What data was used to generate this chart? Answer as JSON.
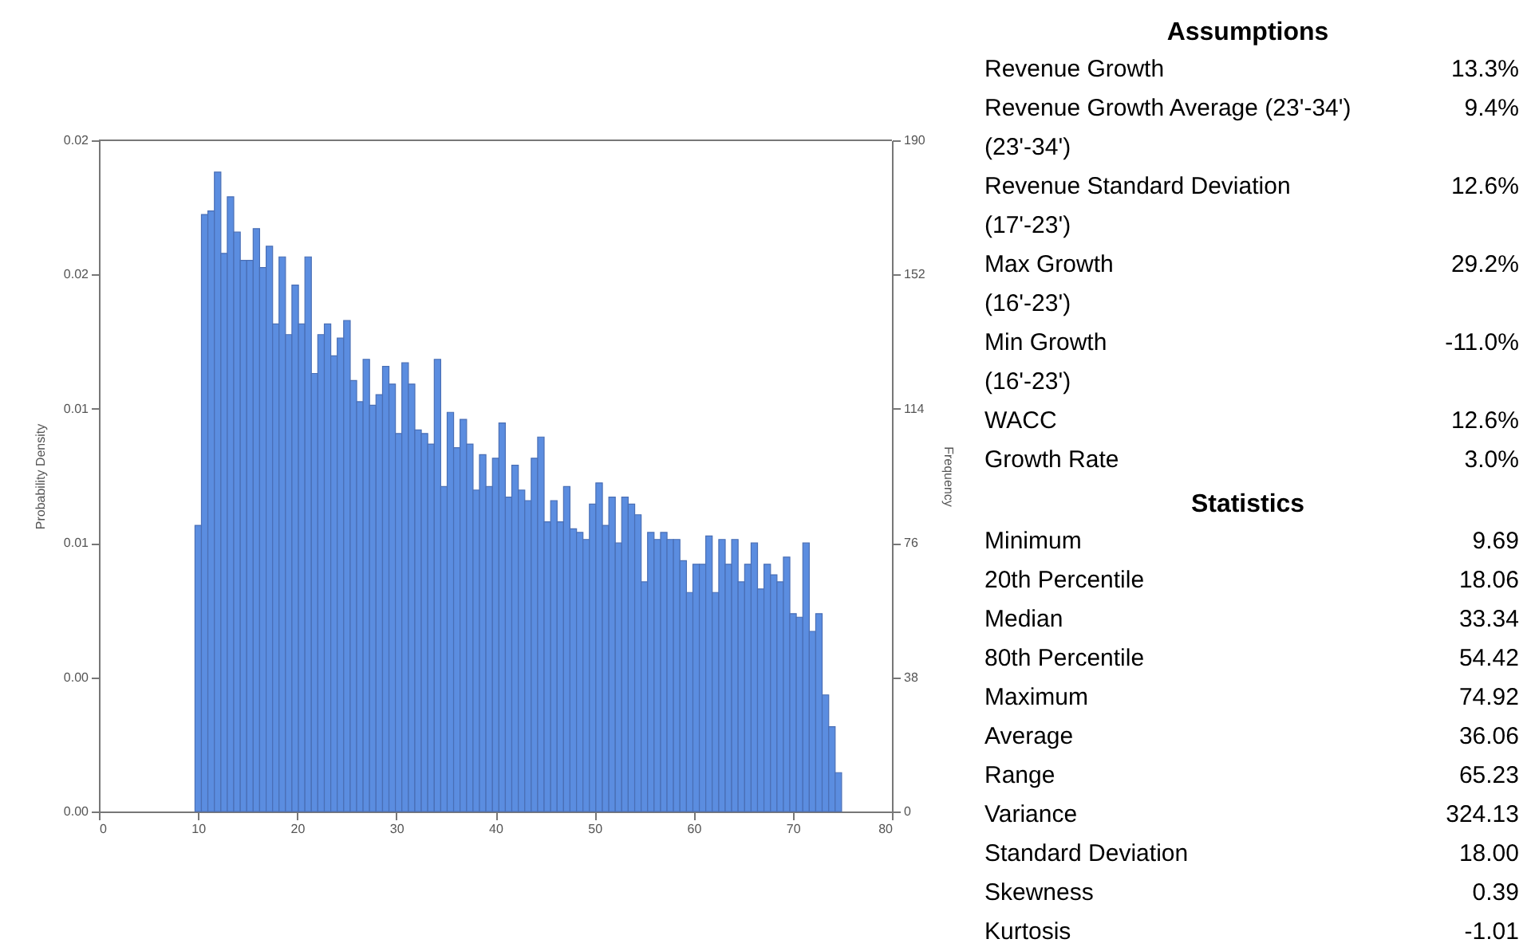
{
  "chart_data": [
    {
      "type": "histogram",
      "ylabel": "Probability Density",
      "y2label": "Frequency",
      "xlim": [
        0,
        80
      ],
      "xticks": [
        0,
        10,
        20,
        30,
        40,
        50,
        60,
        70,
        80
      ],
      "ylim": [
        0,
        0.02
      ],
      "yticks": [
        {
          "value": 0,
          "label": "0.00"
        },
        {
          "value": 0.004,
          "label": "0.00"
        },
        {
          "value": 0.008,
          "label": "0.01"
        },
        {
          "value": 0.012,
          "label": "0.01"
        },
        {
          "value": 0.016,
          "label": "0.02"
        },
        {
          "value": 0.02,
          "label": "0.02"
        }
      ],
      "y2lim": [
        0,
        190
      ],
      "y2ticks": [
        0,
        38,
        76,
        114,
        152,
        190
      ],
      "bins": [
        9.69,
        10.34,
        10.99,
        11.65,
        12.3,
        12.95,
        13.6,
        14.26,
        14.91,
        15.56,
        16.21,
        16.87,
        17.52,
        18.17,
        18.82,
        19.47,
        20.13,
        20.78,
        21.43,
        22.08,
        22.74,
        23.39,
        24.04,
        24.69,
        25.35,
        26.0,
        26.65,
        27.3,
        27.95,
        28.61,
        29.26,
        29.91,
        30.56,
        31.22,
        31.87,
        32.52,
        33.17,
        33.83,
        34.48,
        35.13,
        35.78,
        36.43,
        37.09,
        37.74,
        38.39,
        39.04,
        39.7,
        40.35,
        41.0,
        41.65,
        42.31,
        42.96,
        43.61,
        44.26,
        44.91,
        45.57,
        46.22,
        46.87,
        47.52,
        48.18,
        48.83,
        49.48,
        50.13,
        50.79,
        51.44,
        52.09,
        52.74,
        53.39,
        54.05,
        54.7,
        55.35,
        56.0,
        56.66,
        57.31,
        57.96,
        58.61,
        59.27,
        59.92,
        60.57,
        61.22,
        61.87,
        62.53,
        63.18,
        63.83,
        64.48,
        65.14,
        65.79,
        66.44,
        67.09,
        67.75,
        68.4,
        69.05,
        69.7,
        70.35,
        71.01,
        71.66,
        72.31,
        72.96,
        73.62,
        74.27,
        74.92
      ],
      "series": [
        {
          "color": "#5b8de0",
          "axis": "y2",
          "values": [
            81,
            169,
            170,
            181,
            158,
            174,
            164,
            156,
            156,
            165,
            154,
            160,
            138,
            157,
            135,
            149,
            138,
            157,
            124,
            135,
            138,
            129,
            134,
            139,
            122,
            116,
            128,
            115,
            118,
            126,
            121,
            107,
            127,
            121,
            108,
            107,
            104,
            128,
            92,
            113,
            103,
            111,
            104,
            91,
            101,
            92,
            100,
            110,
            89,
            98,
            91,
            88,
            100,
            106,
            82,
            88,
            82,
            92,
            80,
            79,
            77,
            87,
            93,
            81,
            89,
            76,
            89,
            87,
            84,
            65,
            79,
            77,
            79,
            77,
            77,
            71,
            62,
            70,
            70,
            78,
            62,
            77,
            70,
            77,
            65,
            70,
            76,
            63,
            70,
            67,
            65,
            72,
            56,
            55,
            76,
            51,
            56,
            33,
            24,
            11
          ]
        }
      ]
    },
    {
      "type": "other",
      "title": "Assumptions",
      "categories": [
        "Revenue Growth",
        "Revenue Growth Average (23'-34')\n(23'-34')",
        "Revenue Standard Deviation\n(17'-23')",
        "Max Growth\n(16'-23')",
        "Min Growth\n(16'-23')",
        "WACC",
        "Growth Rate"
      ],
      "value_labels": [
        "13.3%",
        "9.4%",
        "12.6%",
        "29.2%",
        "-11.0%",
        "12.6%",
        "3.0%"
      ]
    },
    {
      "type": "other",
      "title": "Statistics",
      "categories": [
        "Minimum",
        "20th Percentile",
        "Median",
        "80th Percentile",
        "Maximum",
        "Average",
        "Range",
        "Variance",
        "Standard Deviation",
        "Skewness",
        "Kurtosis"
      ],
      "value_labels": [
        "9.69",
        "18.06",
        "33.34",
        "54.42",
        "74.92",
        "36.06",
        "65.23",
        "324.13",
        "18.00",
        "0.39",
        "-1.01"
      ]
    }
  ]
}
